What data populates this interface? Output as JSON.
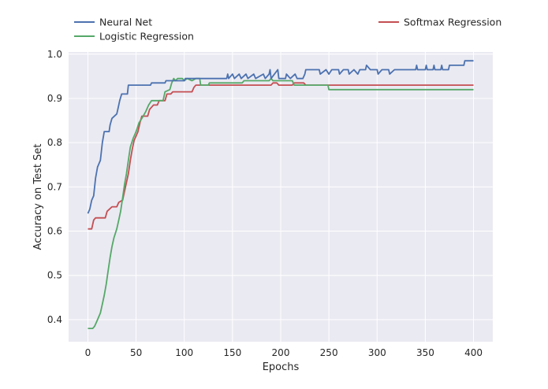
{
  "chart_data": {
    "type": "line",
    "xlabel": "Epochs",
    "ylabel": "Accuracy on Test Set",
    "xlim": [
      -20,
      420
    ],
    "ylim": [
      0.35,
      1.005
    ],
    "xticks": [
      0,
      50,
      100,
      150,
      200,
      250,
      300,
      350,
      400
    ],
    "yticks": [
      0.4,
      0.5,
      0.6,
      0.7,
      0.8,
      0.9,
      1.0
    ],
    "grid": true,
    "legend_placement": "top, outside plot area",
    "series": [
      {
        "name": "Neural Net",
        "color": "#4c72b0",
        "points": [
          [
            0,
            0.64
          ],
          [
            2,
            0.65
          ],
          [
            4,
            0.67
          ],
          [
            6,
            0.68
          ],
          [
            8,
            0.72
          ],
          [
            10,
            0.745
          ],
          [
            13,
            0.76
          ],
          [
            15,
            0.8
          ],
          [
            17,
            0.825
          ],
          [
            22,
            0.825
          ],
          [
            23,
            0.84
          ],
          [
            25,
            0.855
          ],
          [
            30,
            0.865
          ],
          [
            31,
            0.875
          ],
          [
            32,
            0.885
          ],
          [
            33,
            0.895
          ],
          [
            35,
            0.91
          ],
          [
            41,
            0.91
          ],
          [
            42,
            0.93
          ],
          [
            65,
            0.93
          ],
          [
            66,
            0.935
          ],
          [
            80,
            0.935
          ],
          [
            81,
            0.94
          ],
          [
            100,
            0.94
          ],
          [
            101,
            0.945
          ],
          [
            144,
            0.945
          ],
          [
            145,
            0.955
          ],
          [
            146,
            0.945
          ],
          [
            150,
            0.955
          ],
          [
            152,
            0.945
          ],
          [
            157,
            0.955
          ],
          [
            159,
            0.945
          ],
          [
            164,
            0.955
          ],
          [
            166,
            0.945
          ],
          [
            172,
            0.955
          ],
          [
            174,
            0.945
          ],
          [
            182,
            0.955
          ],
          [
            184,
            0.945
          ],
          [
            188,
            0.955
          ],
          [
            189,
            0.965
          ],
          [
            190,
            0.945
          ],
          [
            197,
            0.965
          ],
          [
            198,
            0.945
          ],
          [
            205,
            0.945
          ],
          [
            206,
            0.955
          ],
          [
            210,
            0.945
          ],
          [
            215,
            0.955
          ],
          [
            217,
            0.945
          ],
          [
            223,
            0.945
          ],
          [
            225,
            0.955
          ],
          [
            226,
            0.965
          ],
          [
            240,
            0.965
          ],
          [
            241,
            0.955
          ],
          [
            247,
            0.965
          ],
          [
            250,
            0.955
          ],
          [
            253,
            0.965
          ],
          [
            260,
            0.965
          ],
          [
            261,
            0.955
          ],
          [
            265,
            0.965
          ],
          [
            270,
            0.965
          ],
          [
            271,
            0.955
          ],
          [
            276,
            0.965
          ],
          [
            280,
            0.955
          ],
          [
            282,
            0.965
          ],
          [
            288,
            0.965
          ],
          [
            289,
            0.975
          ],
          [
            293,
            0.965
          ],
          [
            300,
            0.965
          ],
          [
            301,
            0.955
          ],
          [
            305,
            0.965
          ],
          [
            312,
            0.965
          ],
          [
            313,
            0.955
          ],
          [
            318,
            0.965
          ],
          [
            340,
            0.965
          ],
          [
            341,
            0.975
          ],
          [
            342,
            0.965
          ],
          [
            350,
            0.965
          ],
          [
            351,
            0.975
          ],
          [
            352,
            0.965
          ],
          [
            358,
            0.965
          ],
          [
            359,
            0.975
          ],
          [
            360,
            0.965
          ],
          [
            366,
            0.965
          ],
          [
            367,
            0.975
          ],
          [
            368,
            0.965
          ],
          [
            374,
            0.965
          ],
          [
            375,
            0.975
          ],
          [
            380,
            0.975
          ],
          [
            390,
            0.975
          ],
          [
            391,
            0.985
          ],
          [
            400,
            0.985
          ]
        ]
      },
      {
        "name": "Logistic Regression",
        "color": "#55a868",
        "points": [
          [
            0,
            0.38
          ],
          [
            5,
            0.38
          ],
          [
            7,
            0.385
          ],
          [
            9,
            0.395
          ],
          [
            11,
            0.405
          ],
          [
            13,
            0.415
          ],
          [
            15,
            0.435
          ],
          [
            17,
            0.455
          ],
          [
            19,
            0.48
          ],
          [
            21,
            0.51
          ],
          [
            23,
            0.54
          ],
          [
            25,
            0.565
          ],
          [
            27,
            0.585
          ],
          [
            30,
            0.605
          ],
          [
            32,
            0.625
          ],
          [
            34,
            0.645
          ],
          [
            36,
            0.675
          ],
          [
            38,
            0.705
          ],
          [
            40,
            0.73
          ],
          [
            42,
            0.76
          ],
          [
            44,
            0.79
          ],
          [
            47,
            0.81
          ],
          [
            50,
            0.825
          ],
          [
            53,
            0.845
          ],
          [
            56,
            0.855
          ],
          [
            60,
            0.87
          ],
          [
            63,
            0.885
          ],
          [
            66,
            0.895
          ],
          [
            78,
            0.895
          ],
          [
            80,
            0.915
          ],
          [
            85,
            0.92
          ],
          [
            87,
            0.935
          ],
          [
            89,
            0.945
          ],
          [
            91,
            0.94
          ],
          [
            93,
            0.945
          ],
          [
            98,
            0.945
          ],
          [
            100,
            0.94
          ],
          [
            103,
            0.945
          ],
          [
            108,
            0.94
          ],
          [
            112,
            0.945
          ],
          [
            116,
            0.945
          ],
          [
            117,
            0.93
          ],
          [
            125,
            0.93
          ],
          [
            126,
            0.935
          ],
          [
            160,
            0.935
          ],
          [
            162,
            0.94
          ],
          [
            188,
            0.94
          ],
          [
            190,
            0.945
          ],
          [
            192,
            0.94
          ],
          [
            212,
            0.94
          ],
          [
            214,
            0.93
          ],
          [
            249,
            0.93
          ],
          [
            250,
            0.92
          ],
          [
            400,
            0.92
          ]
        ]
      },
      {
        "name": "Softmax Regression",
        "color": "#c44e52",
        "points": [
          [
            0,
            0.605
          ],
          [
            4,
            0.605
          ],
          [
            6,
            0.625
          ],
          [
            8,
            0.63
          ],
          [
            18,
            0.63
          ],
          [
            20,
            0.645
          ],
          [
            25,
            0.655
          ],
          [
            30,
            0.655
          ],
          [
            32,
            0.665
          ],
          [
            36,
            0.67
          ],
          [
            38,
            0.69
          ],
          [
            40,
            0.71
          ],
          [
            42,
            0.73
          ],
          [
            44,
            0.76
          ],
          [
            46,
            0.785
          ],
          [
            48,
            0.805
          ],
          [
            52,
            0.825
          ],
          [
            54,
            0.845
          ],
          [
            56,
            0.86
          ],
          [
            62,
            0.86
          ],
          [
            64,
            0.875
          ],
          [
            66,
            0.88
          ],
          [
            68,
            0.885
          ],
          [
            72,
            0.885
          ],
          [
            74,
            0.895
          ],
          [
            80,
            0.895
          ],
          [
            82,
            0.91
          ],
          [
            86,
            0.91
          ],
          [
            88,
            0.915
          ],
          [
            108,
            0.915
          ],
          [
            110,
            0.925
          ],
          [
            112,
            0.93
          ],
          [
            190,
            0.93
          ],
          [
            192,
            0.935
          ],
          [
            196,
            0.935
          ],
          [
            198,
            0.93
          ],
          [
            212,
            0.93
          ],
          [
            214,
            0.935
          ],
          [
            224,
            0.935
          ],
          [
            226,
            0.93
          ],
          [
            400,
            0.93
          ]
        ]
      }
    ]
  }
}
